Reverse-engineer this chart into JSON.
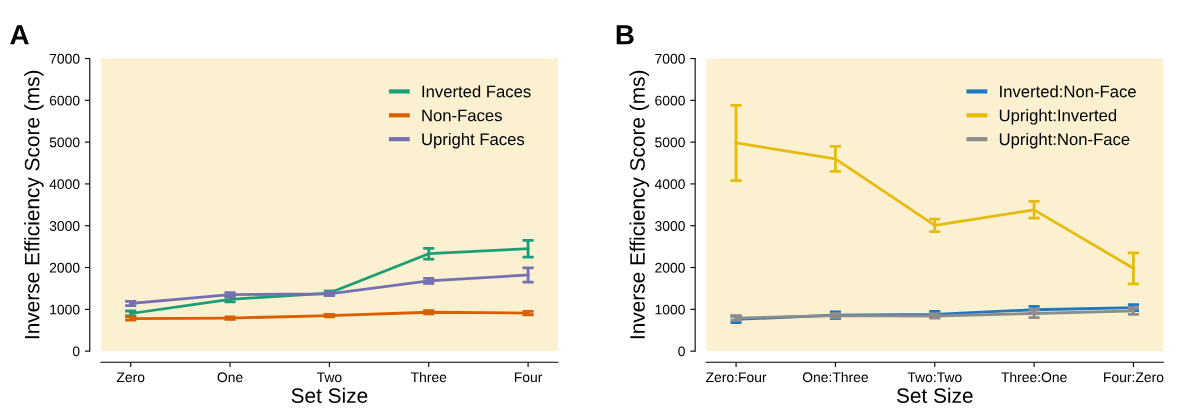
{
  "chart_data": [
    {
      "type": "line",
      "title": "A",
      "xlabel": "Set Size",
      "ylabel": "Inverse Efficiency Score (ms)",
      "categories": [
        "Zero",
        "One",
        "Two",
        "Three",
        "Four"
      ],
      "ylim": [
        0,
        7000
      ],
      "yticks": [
        0,
        1000,
        2000,
        3000,
        4000,
        5000,
        6000,
        7000
      ],
      "legend": "top right",
      "grid": false,
      "series": [
        {
          "name": "Inverted Faces",
          "color": "#1b9e77",
          "values": [
            900,
            1240,
            1390,
            2330,
            2450
          ],
          "errors": [
            60,
            60,
            50,
            130,
            200
          ]
        },
        {
          "name": "Non-Faces",
          "color": "#d95f02",
          "values": [
            780,
            790,
            850,
            930,
            910
          ],
          "errors": [
            40,
            30,
            30,
            40,
            40
          ]
        },
        {
          "name": "Upright Faces",
          "color": "#7570b3",
          "values": [
            1140,
            1350,
            1370,
            1680,
            1820
          ],
          "errors": [
            50,
            50,
            40,
            60,
            170
          ]
        }
      ]
    },
    {
      "type": "line",
      "title": "B",
      "xlabel": "Set Size",
      "ylabel": "Inverse Efficiency Score (ms)",
      "categories": [
        "Zero:Four",
        "One:Three",
        "Two:Two",
        "Three:One",
        "Four:Zero"
      ],
      "ylim": [
        0,
        7000
      ],
      "yticks": [
        0,
        1000,
        2000,
        3000,
        4000,
        5000,
        6000,
        7000
      ],
      "legend": "top right",
      "grid": false,
      "series": [
        {
          "name": "Inverted:Non-Face",
          "color": "#1f78c1",
          "values": [
            760,
            860,
            880,
            990,
            1040
          ],
          "errors": [
            80,
            80,
            70,
            80,
            70
          ]
        },
        {
          "name": "Upright:Inverted",
          "color": "#e6bb0c",
          "values": [
            4980,
            4600,
            3010,
            3380,
            1980
          ],
          "errors": [
            900,
            300,
            150,
            200,
            370
          ]
        },
        {
          "name": "Upright:Non-Face",
          "color": "#8c8c8c",
          "values": [
            790,
            850,
            840,
            900,
            960
          ],
          "errors": [
            50,
            50,
            50,
            100,
            80
          ]
        }
      ]
    }
  ]
}
